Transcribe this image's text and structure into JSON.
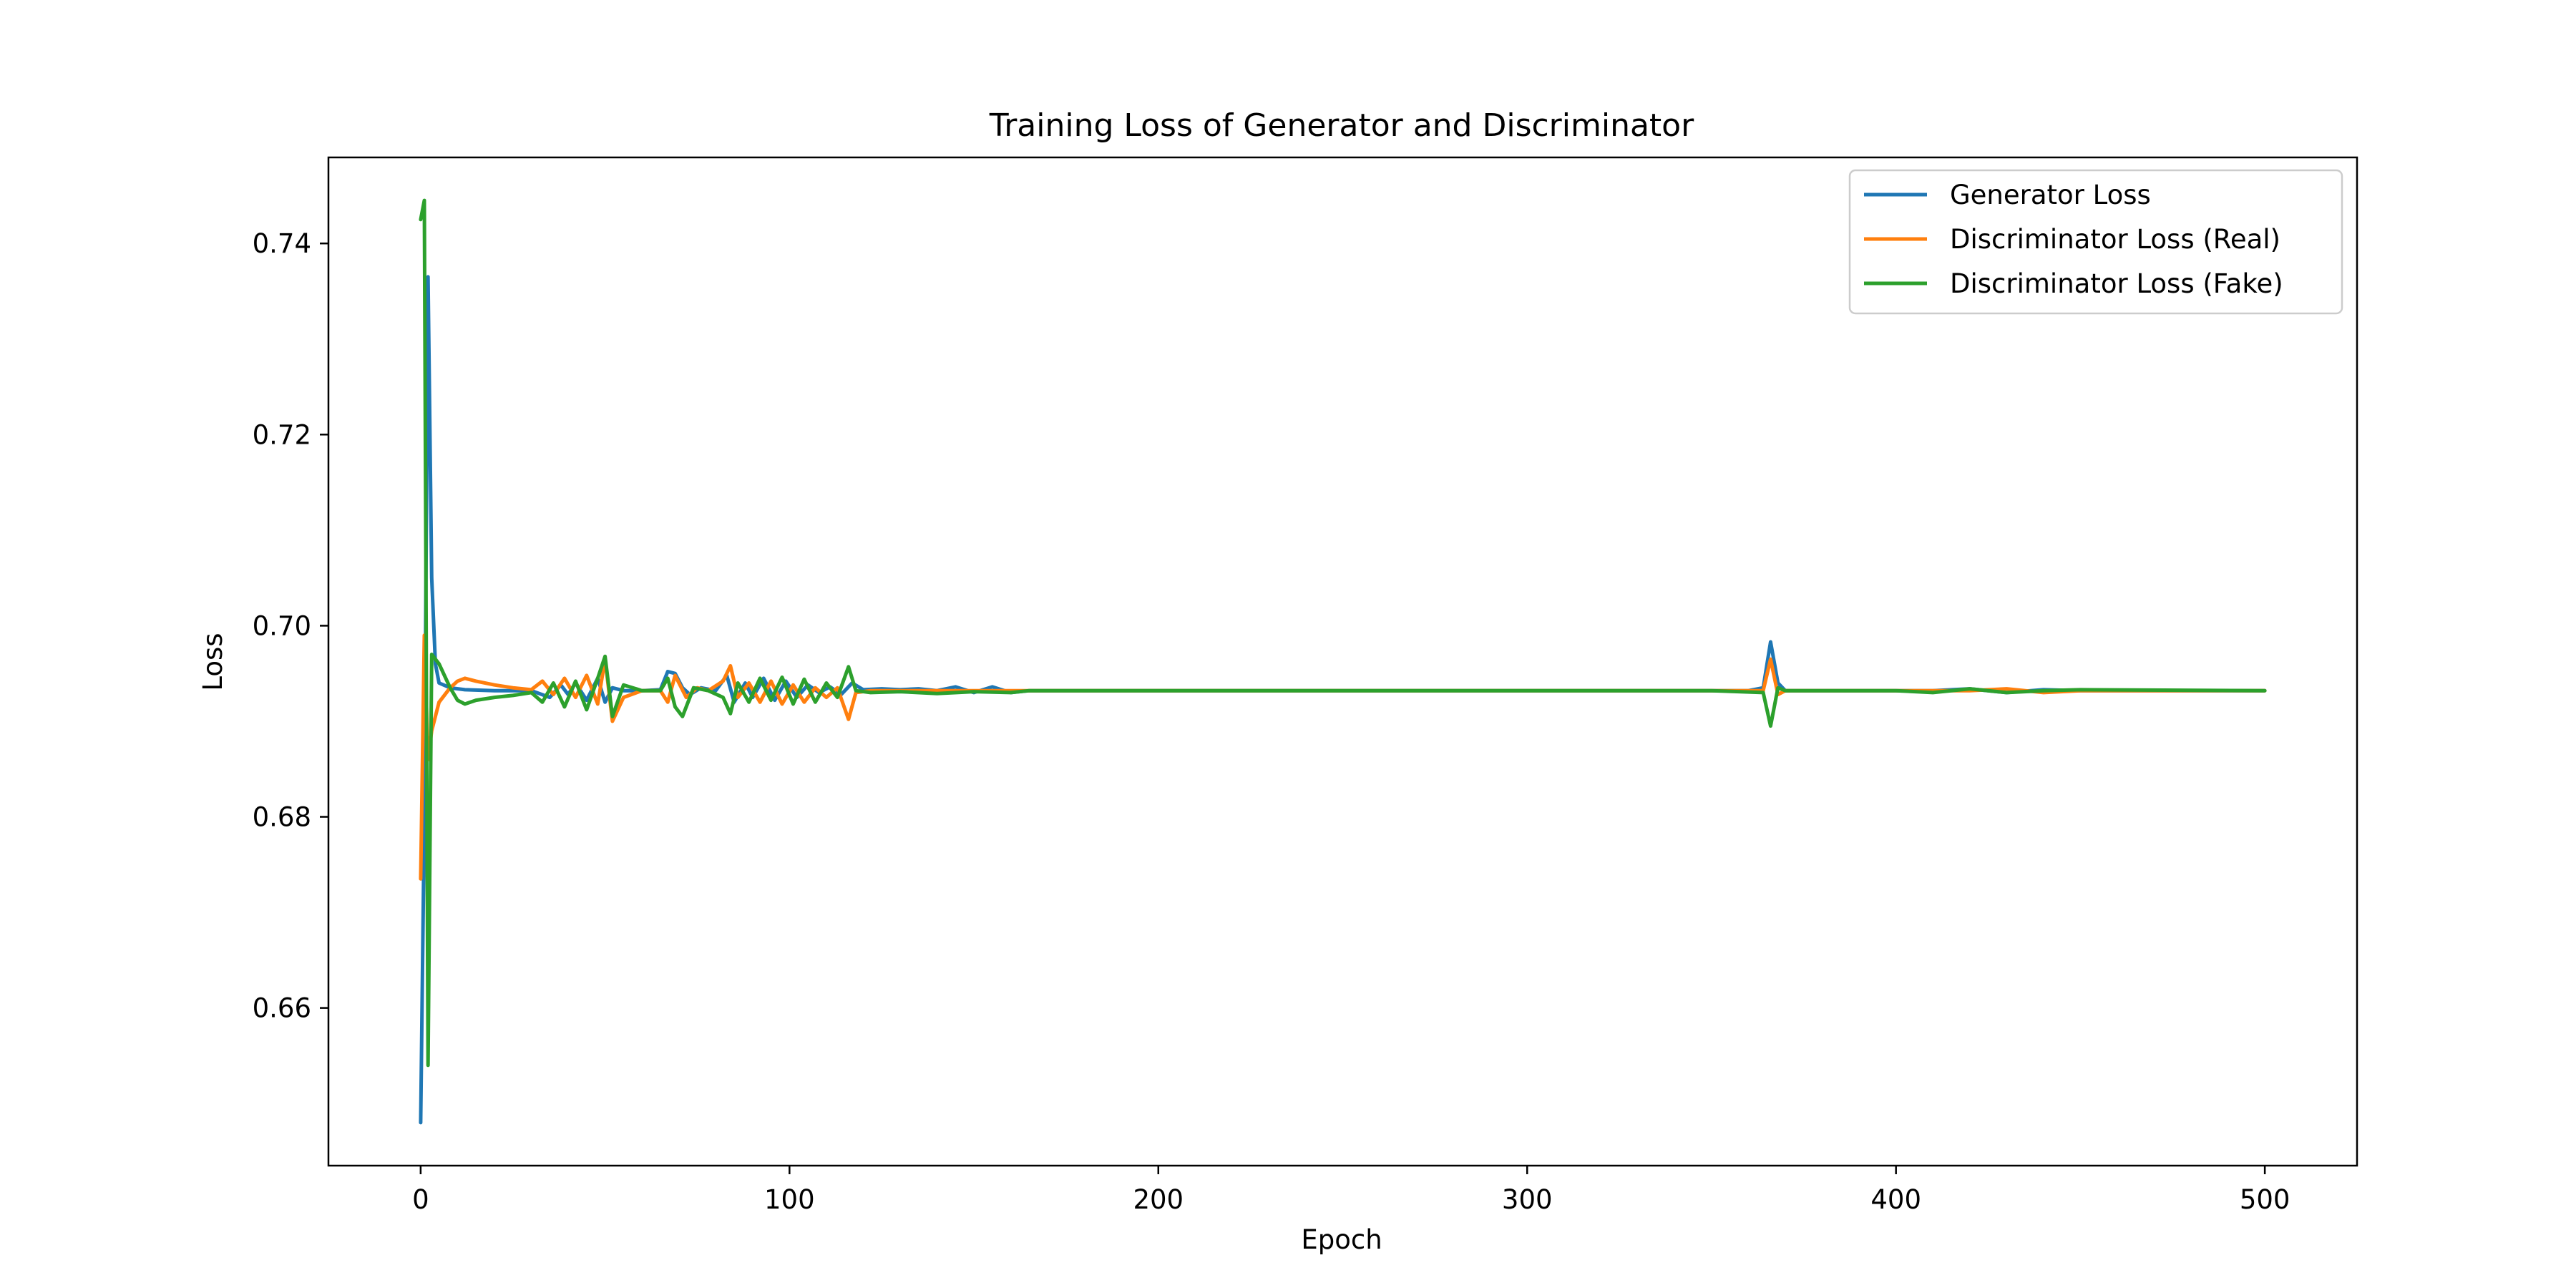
{
  "chart_data": {
    "type": "line",
    "title": "Training Loss of Generator and Discriminator",
    "xlabel": "Epoch",
    "ylabel": "Loss",
    "xlim": [
      -25,
      525
    ],
    "ylim": [
      0.6435,
      0.749
    ],
    "xticks": [
      0,
      100,
      200,
      300,
      400,
      500
    ],
    "yticks": [
      0.66,
      0.68,
      0.7,
      0.72,
      0.74
    ],
    "ytick_labels": [
      "0.66",
      "0.68",
      "0.70",
      "0.72",
      "0.74"
    ],
    "legend_position": "top-right",
    "grid": false,
    "colors": {
      "generator": "#1f77b4",
      "disc_real": "#ff7f0e",
      "disc_fake": "#2ca02c"
    },
    "series": [
      {
        "name": "Generator Loss",
        "color": "#1f77b4",
        "points": [
          [
            0,
            0.648
          ],
          [
            1,
            0.68
          ],
          [
            2,
            0.7365
          ],
          [
            3,
            0.705
          ],
          [
            4,
            0.696
          ],
          [
            5,
            0.694
          ],
          [
            8,
            0.6935
          ],
          [
            12,
            0.6933
          ],
          [
            20,
            0.6932
          ],
          [
            30,
            0.6932
          ],
          [
            35,
            0.6925
          ],
          [
            38,
            0.6938
          ],
          [
            40,
            0.6928
          ],
          [
            42,
            0.694
          ],
          [
            45,
            0.6922
          ],
          [
            48,
            0.6945
          ],
          [
            50,
            0.692
          ],
          [
            52,
            0.6935
          ],
          [
            55,
            0.6932
          ],
          [
            60,
            0.6932
          ],
          [
            65,
            0.6933
          ],
          [
            67,
            0.6952
          ],
          [
            69,
            0.695
          ],
          [
            71,
            0.6935
          ],
          [
            73,
            0.6928
          ],
          [
            76,
            0.6935
          ],
          [
            80,
            0.6932
          ],
          [
            83,
            0.6948
          ],
          [
            85,
            0.692
          ],
          [
            88,
            0.694
          ],
          [
            90,
            0.6925
          ],
          [
            93,
            0.6945
          ],
          [
            96,
            0.6922
          ],
          [
            99,
            0.6942
          ],
          [
            102,
            0.6925
          ],
          [
            105,
            0.6938
          ],
          [
            108,
            0.693
          ],
          [
            111,
            0.6936
          ],
          [
            114,
            0.6928
          ],
          [
            117,
            0.694
          ],
          [
            120,
            0.6933
          ],
          [
            125,
            0.6934
          ],
          [
            130,
            0.6933
          ],
          [
            135,
            0.6934
          ],
          [
            140,
            0.6932
          ],
          [
            145,
            0.6936
          ],
          [
            150,
            0.693
          ],
          [
            155,
            0.6936
          ],
          [
            160,
            0.693
          ],
          [
            165,
            0.6932
          ],
          [
            200,
            0.6932
          ],
          [
            250,
            0.6932
          ],
          [
            300,
            0.6932
          ],
          [
            350,
            0.6932
          ],
          [
            360,
            0.6932
          ],
          [
            364,
            0.6935
          ],
          [
            366,
            0.6983
          ],
          [
            368,
            0.694
          ],
          [
            370,
            0.6932
          ],
          [
            400,
            0.6932
          ],
          [
            410,
            0.6932
          ],
          [
            420,
            0.6934
          ],
          [
            430,
            0.693
          ],
          [
            440,
            0.6933
          ],
          [
            450,
            0.6932
          ],
          [
            500,
            0.6932
          ]
        ]
      },
      {
        "name": "Discriminator Loss (Real)",
        "color": "#ff7f0e",
        "points": [
          [
            0,
            0.6735
          ],
          [
            1,
            0.699
          ],
          [
            2,
            0.686
          ],
          [
            3,
            0.689
          ],
          [
            5,
            0.692
          ],
          [
            8,
            0.6935
          ],
          [
            10,
            0.6942
          ],
          [
            12,
            0.6945
          ],
          [
            15,
            0.6942
          ],
          [
            20,
            0.6938
          ],
          [
            25,
            0.6935
          ],
          [
            30,
            0.6933
          ],
          [
            33,
            0.6942
          ],
          [
            36,
            0.6928
          ],
          [
            39,
            0.6945
          ],
          [
            42,
            0.6925
          ],
          [
            45,
            0.6948
          ],
          [
            48,
            0.6918
          ],
          [
            50,
            0.6965
          ],
          [
            52,
            0.69
          ],
          [
            55,
            0.6925
          ],
          [
            60,
            0.6932
          ],
          [
            65,
            0.6932
          ],
          [
            67,
            0.692
          ],
          [
            69,
            0.6948
          ],
          [
            72,
            0.6925
          ],
          [
            75,
            0.6935
          ],
          [
            78,
            0.6932
          ],
          [
            82,
            0.6942
          ],
          [
            84,
            0.6958
          ],
          [
            86,
            0.6925
          ],
          [
            89,
            0.694
          ],
          [
            92,
            0.692
          ],
          [
            95,
            0.6942
          ],
          [
            98,
            0.6918
          ],
          [
            101,
            0.6938
          ],
          [
            104,
            0.692
          ],
          [
            107,
            0.6935
          ],
          [
            110,
            0.6925
          ],
          [
            113,
            0.6935
          ],
          [
            116,
            0.6902
          ],
          [
            118,
            0.693
          ],
          [
            122,
            0.6932
          ],
          [
            130,
            0.6932
          ],
          [
            140,
            0.6932
          ],
          [
            150,
            0.6932
          ],
          [
            160,
            0.6932
          ],
          [
            200,
            0.6932
          ],
          [
            250,
            0.6932
          ],
          [
            300,
            0.6932
          ],
          [
            350,
            0.6932
          ],
          [
            364,
            0.6932
          ],
          [
            366,
            0.6965
          ],
          [
            368,
            0.6928
          ],
          [
            370,
            0.6932
          ],
          [
            400,
            0.6932
          ],
          [
            420,
            0.6932
          ],
          [
            430,
            0.6934
          ],
          [
            440,
            0.693
          ],
          [
            450,
            0.6932
          ],
          [
            500,
            0.6932
          ]
        ]
      },
      {
        "name": "Discriminator Loss (Fake)",
        "color": "#2ca02c",
        "points": [
          [
            0,
            0.7425
          ],
          [
            1,
            0.7445
          ],
          [
            2,
            0.654
          ],
          [
            3,
            0.697
          ],
          [
            5,
            0.696
          ],
          [
            8,
            0.6935
          ],
          [
            10,
            0.6922
          ],
          [
            12,
            0.6918
          ],
          [
            15,
            0.6922
          ],
          [
            20,
            0.6925
          ],
          [
            25,
            0.6927
          ],
          [
            30,
            0.693
          ],
          [
            33,
            0.692
          ],
          [
            36,
            0.694
          ],
          [
            39,
            0.6915
          ],
          [
            42,
            0.6942
          ],
          [
            45,
            0.6912
          ],
          [
            48,
            0.6945
          ],
          [
            50,
            0.6968
          ],
          [
            52,
            0.6905
          ],
          [
            55,
            0.6938
          ],
          [
            60,
            0.6932
          ],
          [
            65,
            0.6932
          ],
          [
            67,
            0.6945
          ],
          [
            69,
            0.6915
          ],
          [
            71,
            0.6905
          ],
          [
            74,
            0.6935
          ],
          [
            78,
            0.6932
          ],
          [
            82,
            0.6925
          ],
          [
            84,
            0.6908
          ],
          [
            86,
            0.694
          ],
          [
            89,
            0.692
          ],
          [
            92,
            0.6945
          ],
          [
            95,
            0.6922
          ],
          [
            98,
            0.6946
          ],
          [
            101,
            0.6918
          ],
          [
            104,
            0.6944
          ],
          [
            107,
            0.692
          ],
          [
            110,
            0.694
          ],
          [
            113,
            0.6925
          ],
          [
            116,
            0.6957
          ],
          [
            118,
            0.6932
          ],
          [
            122,
            0.693
          ],
          [
            130,
            0.6931
          ],
          [
            140,
            0.6929
          ],
          [
            150,
            0.6931
          ],
          [
            160,
            0.693
          ],
          [
            165,
            0.6932
          ],
          [
            200,
            0.6932
          ],
          [
            250,
            0.6932
          ],
          [
            300,
            0.6932
          ],
          [
            350,
            0.6932
          ],
          [
            364,
            0.693
          ],
          [
            366,
            0.6895
          ],
          [
            368,
            0.6935
          ],
          [
            370,
            0.6932
          ],
          [
            400,
            0.6932
          ],
          [
            410,
            0.693
          ],
          [
            420,
            0.6934
          ],
          [
            430,
            0.693
          ],
          [
            440,
            0.6932
          ],
          [
            450,
            0.6933
          ],
          [
            500,
            0.6932
          ]
        ]
      }
    ]
  }
}
